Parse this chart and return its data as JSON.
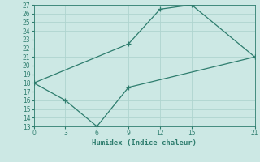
{
  "xlabel": "Humidex (Indice chaleur)",
  "line1_x": [
    0,
    9,
    12,
    15,
    21
  ],
  "line1_y": [
    18,
    22.5,
    26.5,
    27,
    21
  ],
  "line2_x": [
    0,
    3,
    6,
    9,
    21
  ],
  "line2_y": [
    18,
    16,
    13,
    17.5,
    21
  ],
  "line_color": "#2e7d6e",
  "bg_color": "#cce8e4",
  "grid_color": "#afd4cf",
  "xlim": [
    0,
    21
  ],
  "ylim": [
    13,
    27
  ],
  "xticks": [
    0,
    3,
    6,
    9,
    12,
    15,
    21
  ],
  "yticks": [
    13,
    14,
    15,
    16,
    17,
    18,
    19,
    20,
    21,
    22,
    23,
    24,
    25,
    26,
    27
  ]
}
